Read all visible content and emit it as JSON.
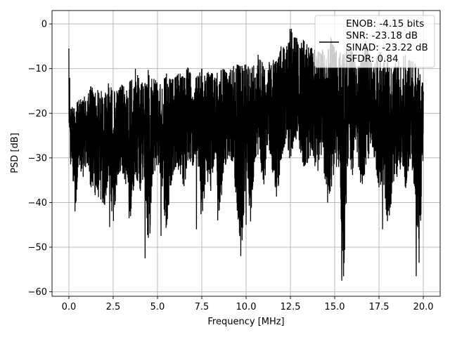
{
  "chart_data": {
    "type": "line",
    "title": "",
    "xlabel": "Frequency [MHz]",
    "ylabel": "PSD [dB]",
    "xlim": [
      -0.95,
      20.95
    ],
    "ylim": [
      -61,
      3
    ],
    "xticks": [
      0.0,
      2.5,
      5.0,
      7.5,
      10.0,
      12.5,
      15.0,
      17.5,
      20.0
    ],
    "xtick_labels": [
      "0.0",
      "2.5",
      "5.0",
      "7.5",
      "10.0",
      "12.5",
      "15.0",
      "17.5",
      "20.0"
    ],
    "yticks": [
      0,
      -10,
      -20,
      -30,
      -40,
      -50,
      -60
    ],
    "ytick_labels": [
      "0",
      "−10",
      "−20",
      "−30",
      "−40",
      "−50",
      "−60"
    ],
    "grid": true,
    "legend_position": "top-right",
    "line_color": "#000000",
    "legend": {
      "lines": [
        "ENOB: -4.15 bits",
        "SNR: -23.18 dB",
        "SINAD: -23.22 dB",
        "SFDR: 0.84"
      ]
    },
    "series": [
      {
        "x": [
          0.0,
          0.02,
          0.05,
          0.1,
          0.15,
          0.2,
          0.25,
          0.3,
          0.4,
          0.5,
          0.6,
          0.7,
          0.8,
          0.9,
          1.0,
          1.25,
          1.5,
          1.75,
          2.0,
          2.25,
          2.5,
          2.75,
          3.0,
          3.25,
          3.5,
          3.75,
          4.0,
          4.25,
          4.5,
          4.75,
          5.0,
          5.25,
          5.5,
          5.75,
          6.0,
          6.25,
          6.5,
          6.75,
          7.0,
          7.25,
          7.5,
          7.75,
          8.0,
          8.25,
          8.5,
          8.75,
          9.0,
          9.25,
          9.5,
          9.75,
          10.0,
          10.25,
          10.5,
          10.75,
          11.0,
          11.25,
          11.5,
          11.75,
          12.0,
          12.25,
          12.5,
          12.75,
          13.0,
          13.25,
          13.5,
          13.75,
          14.0,
          14.25,
          14.5,
          14.75,
          15.0,
          15.25,
          15.5,
          15.75,
          16.0,
          16.25,
          16.5,
          16.75,
          17.0,
          17.25,
          17.5,
          17.75,
          18.0,
          18.25,
          18.5,
          18.75,
          19.0,
          19.25,
          19.5,
          19.75,
          20.0
        ],
        "upper": [
          -5.5,
          -8.0,
          -12.0,
          -18.0,
          -19.0,
          -17.0,
          -18.5,
          -16.0,
          -17.0,
          -16.0,
          -17.5,
          -16.5,
          -17.0,
          -16.0,
          -16.5,
          -13.5,
          -15.0,
          -14.5,
          -16.0,
          -13.0,
          -15.0,
          -15.0,
          -13.5,
          -14.5,
          -11.5,
          -10.0,
          -12.5,
          -13.0,
          -10.0,
          -11.5,
          -13.0,
          -13.5,
          -11.0,
          -12.5,
          -12.0,
          -10.5,
          -11.0,
          -9.5,
          -13.0,
          -11.5,
          -10.0,
          -10.5,
          -11.0,
          -11.0,
          -9.0,
          -10.0,
          -11.5,
          -8.5,
          -9.0,
          -9.5,
          -8.0,
          -10.0,
          -8.5,
          -5.5,
          -10.0,
          -9.0,
          -7.0,
          -8.0,
          -4.5,
          -5.0,
          -0.5,
          -2.5,
          -4.0,
          -3.0,
          -5.0,
          -5.5,
          -6.0,
          -5.0,
          -8.0,
          -2.5,
          -5.5,
          -6.5,
          -6.0,
          -4.0,
          -6.0,
          -10.0,
          -8.0,
          -3.5,
          -7.5,
          -9.0,
          -5.5,
          -7.0,
          -8.5,
          -10.0,
          -8.0,
          -8.0,
          -6.5,
          -8.0,
          -8.5,
          -10.0,
          -13.5
        ],
        "lower": [
          -22.0,
          -26.0,
          -30.0,
          -32.0,
          -30.5,
          -32.0,
          -37.0,
          -35.0,
          -42.0,
          -33.0,
          -32.5,
          -36.0,
          -35.5,
          -33.0,
          -31.0,
          -37.0,
          -38.5,
          -39.0,
          -41.5,
          -34.0,
          -45.5,
          -34.0,
          -33.0,
          -36.5,
          -43.5,
          -33.0,
          -38.0,
          -34.0,
          -52.5,
          -34.5,
          -31.0,
          -35.5,
          -47.5,
          -36.5,
          -32.0,
          -33.0,
          -37.0,
          -30.0,
          -32.0,
          -28.5,
          -46.0,
          -34.0,
          -38.0,
          -29.0,
          -44.0,
          -33.0,
          -29.5,
          -31.0,
          -42.0,
          -52.0,
          -32.0,
          -45.0,
          -30.0,
          -29.0,
          -38.0,
          -26.5,
          -33.5,
          -39.5,
          -30.0,
          -26.0,
          -31.0,
          -25.0,
          -28.0,
          -32.0,
          -31.0,
          -30.0,
          -34.0,
          -29.5,
          -36.0,
          -40.0,
          -32.0,
          -33.5,
          -57.5,
          -30.0,
          -34.0,
          -29.0,
          -37.0,
          -33.0,
          -28.5,
          -30.0,
          -37.0,
          -35.0,
          -46.0,
          -38.5,
          -35.0,
          -32.0,
          -37.5,
          -30.0,
          -37.0,
          -56.5,
          -28.5
        ],
        "deep_dips": [
          [
            0.35,
            -42.0
          ],
          [
            2.3,
            -45.5
          ],
          [
            3.4,
            -43.5
          ],
          [
            4.3,
            -52.5
          ],
          [
            5.2,
            -47.5
          ],
          [
            7.2,
            -46.0
          ],
          [
            8.4,
            -44.0
          ],
          [
            9.7,
            -52.0
          ],
          [
            10.0,
            -45.0
          ],
          [
            14.6,
            -40.0
          ],
          [
            15.4,
            -57.5
          ],
          [
            17.7,
            -46.0
          ],
          [
            19.6,
            -56.5
          ]
        ]
      }
    ]
  }
}
